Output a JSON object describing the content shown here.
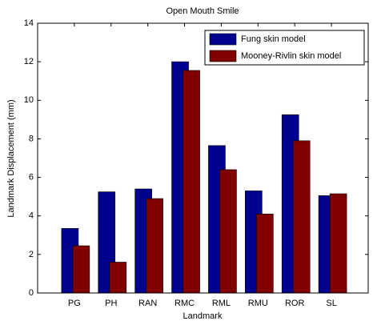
{
  "chart_data": {
    "type": "bar",
    "title": "Open Mouth Smile",
    "x_label": "Landmark",
    "y_label": "Landmark Displacement (mm)",
    "categories": [
      "PG",
      "PH",
      "RAN",
      "RMC",
      "RML",
      "RMU",
      "ROR",
      "SL"
    ],
    "series": [
      {
        "name": "Fung skin model",
        "color": "#00008f",
        "values": [
          3.35,
          5.25,
          5.4,
          12.0,
          7.65,
          5.3,
          9.25,
          5.05
        ]
      },
      {
        "name": "Mooney-Rivlin skin model",
        "color": "#800000",
        "values": [
          2.45,
          1.6,
          4.9,
          11.55,
          6.4,
          4.1,
          7.9,
          5.15
        ]
      }
    ],
    "ylim": [
      0,
      14
    ],
    "yticks": [
      0,
      2,
      4,
      6,
      8,
      10,
      12,
      14
    ],
    "grid": false,
    "legend_position": "top-right"
  }
}
